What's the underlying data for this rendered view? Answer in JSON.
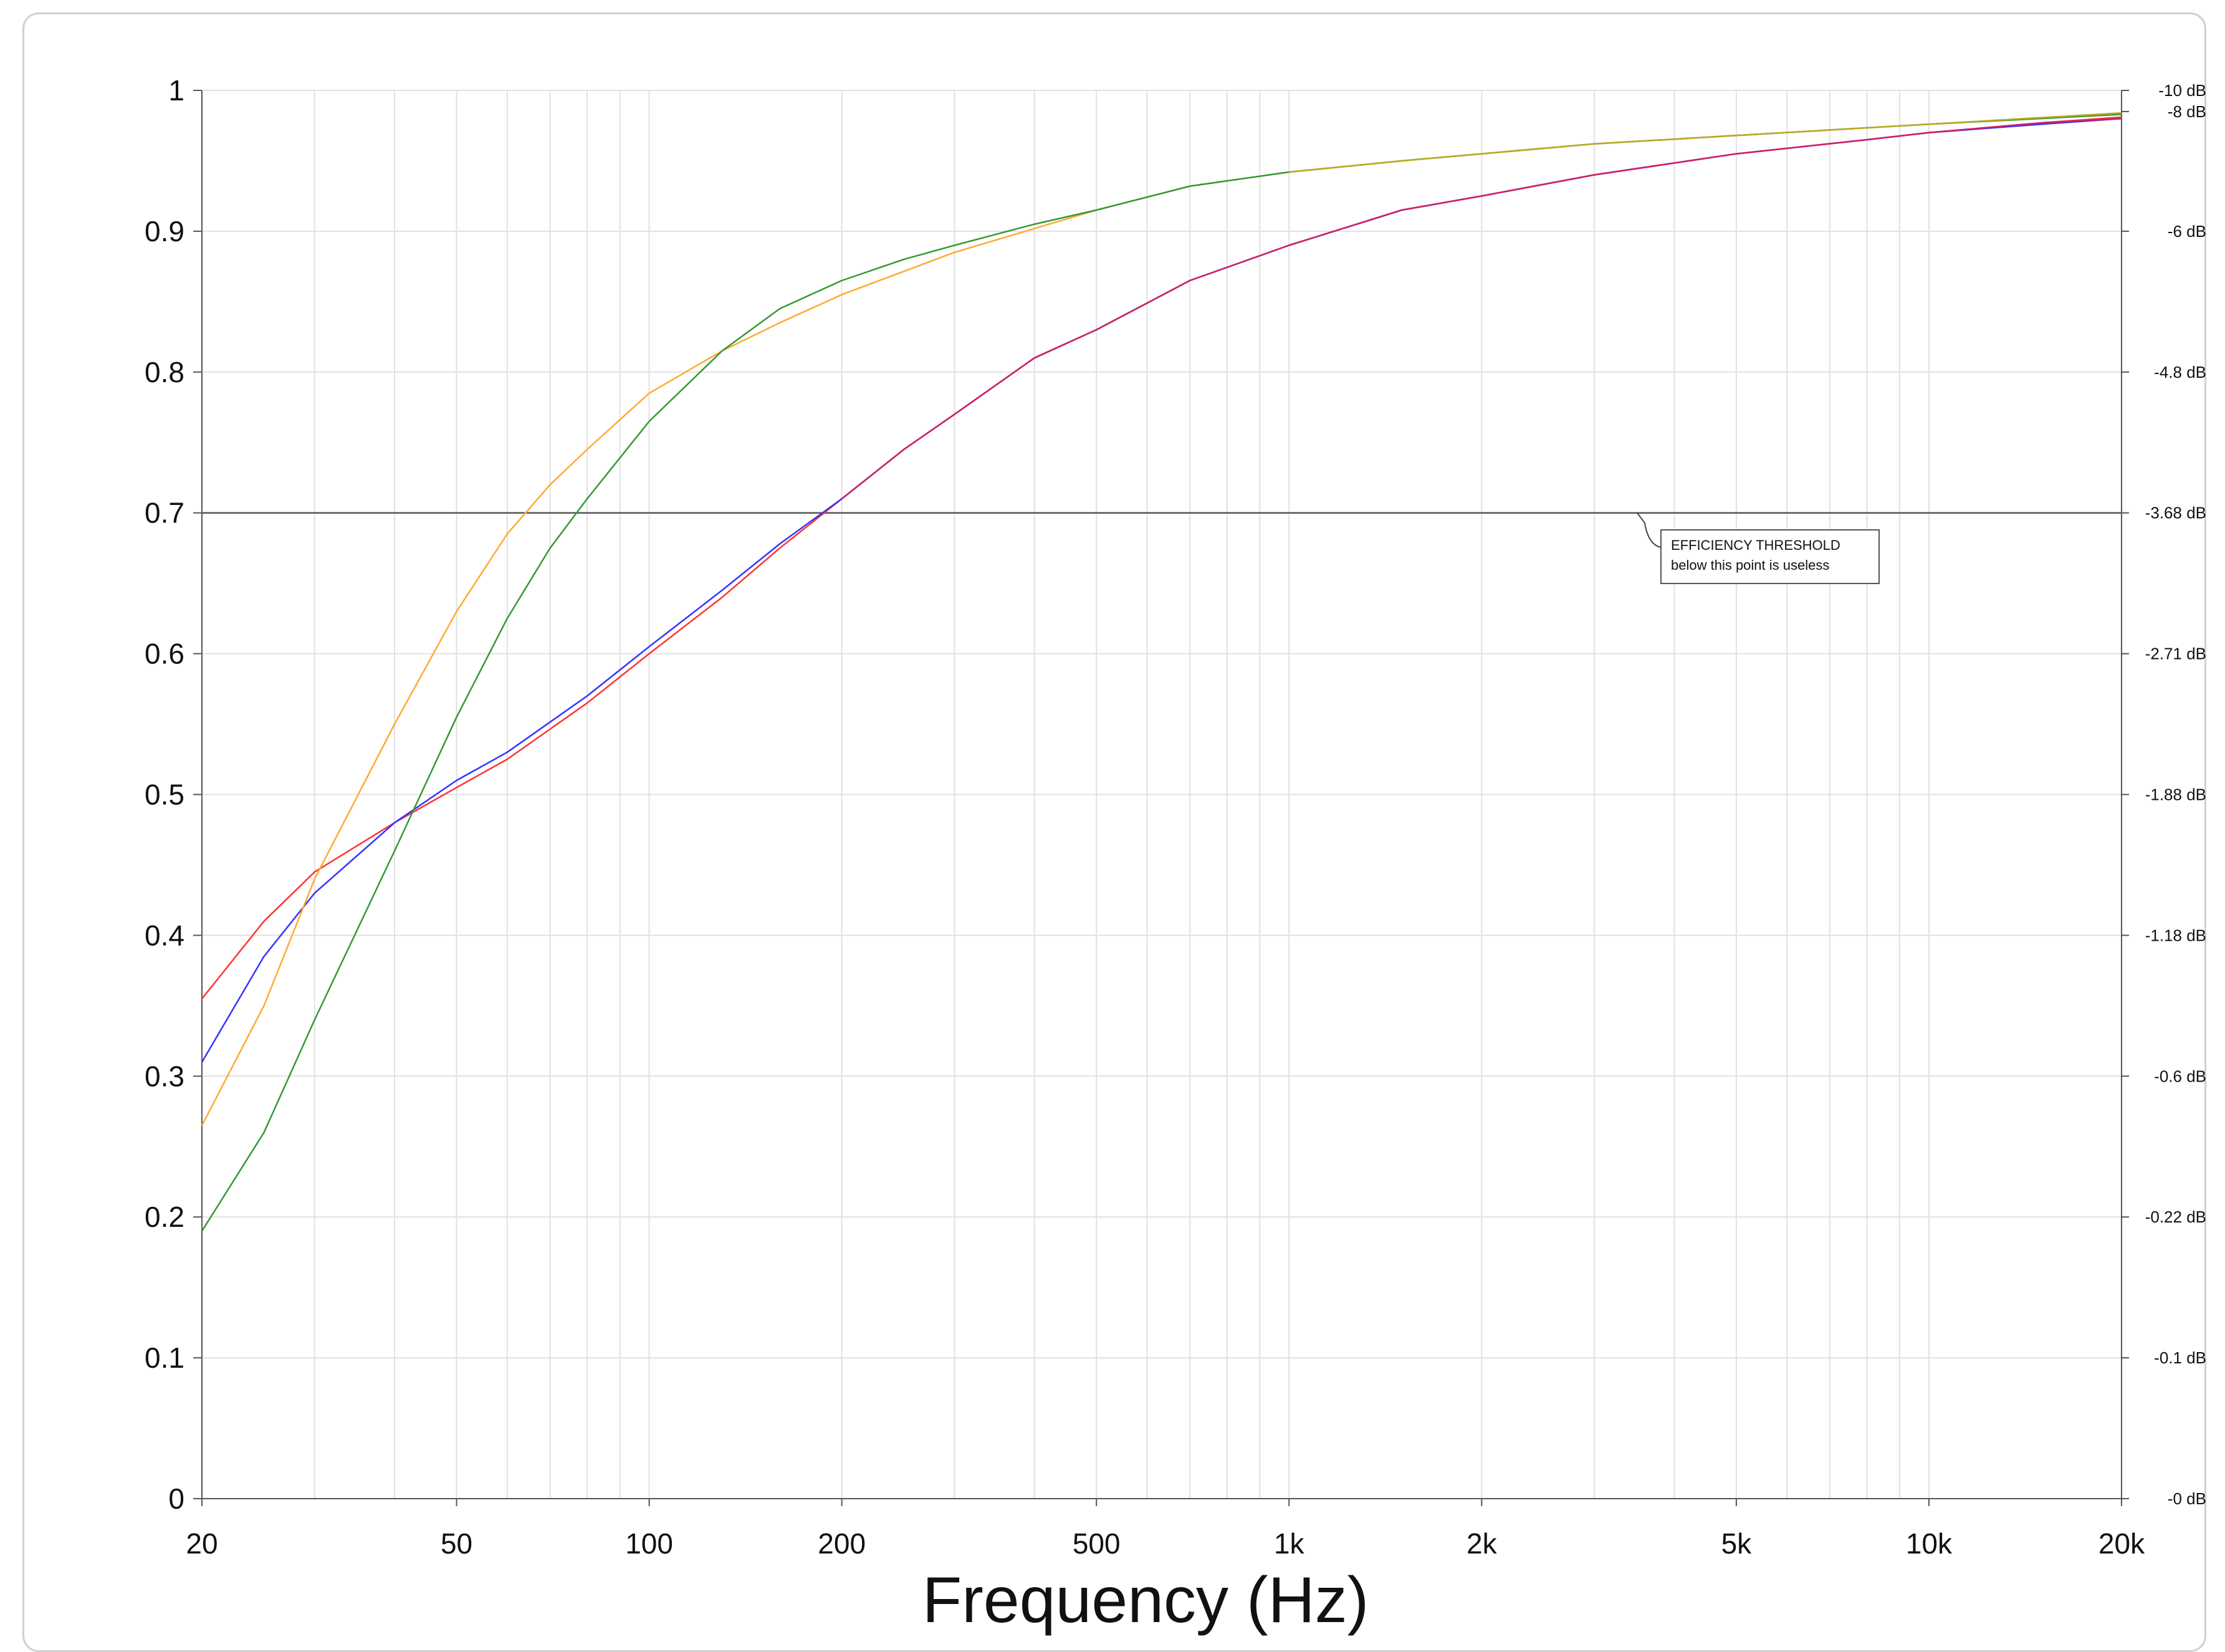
{
  "chart_data": {
    "type": "line",
    "title": "",
    "xlabel": "Frequency (Hz)",
    "ylabel": "",
    "x_scale": "log",
    "xlim": [
      20,
      20000
    ],
    "ylim": [
      0,
      1
    ],
    "grid": true,
    "x_ticks": [
      {
        "value": 20,
        "label": "20"
      },
      {
        "value": 50,
        "label": "50"
      },
      {
        "value": 100,
        "label": "100"
      },
      {
        "value": 200,
        "label": "200"
      },
      {
        "value": 500,
        "label": "500"
      },
      {
        "value": 1000,
        "label": "1k"
      },
      {
        "value": 2000,
        "label": "2k"
      },
      {
        "value": 5000,
        "label": "5k"
      },
      {
        "value": 10000,
        "label": "10k"
      },
      {
        "value": 20000,
        "label": "20k"
      }
    ],
    "y_ticks": [
      {
        "value": 0,
        "label": "0"
      },
      {
        "value": 0.1,
        "label": "0.1"
      },
      {
        "value": 0.2,
        "label": "0.2"
      },
      {
        "value": 0.3,
        "label": "0.3"
      },
      {
        "value": 0.4,
        "label": "0.4"
      },
      {
        "value": 0.5,
        "label": "0.5"
      },
      {
        "value": 0.6,
        "label": "0.6"
      },
      {
        "value": 0.7,
        "label": "0.7"
      },
      {
        "value": 0.8,
        "label": "0.8"
      },
      {
        "value": 0.9,
        "label": "0.9"
      },
      {
        "value": 1,
        "label": "1"
      }
    ],
    "y2_ticks": [
      {
        "value": 0,
        "label": "-0 dB"
      },
      {
        "value": 0.1,
        "label": "-0.1 dB"
      },
      {
        "value": 0.2,
        "label": "-0.22 dB"
      },
      {
        "value": 0.3,
        "label": "-0.6 dB"
      },
      {
        "value": 0.4,
        "label": "-1.18 dB"
      },
      {
        "value": 0.5,
        "label": "-1.88 dB"
      },
      {
        "value": 0.6,
        "label": "-2.71 dB"
      },
      {
        "value": 0.7,
        "label": "-3.68 dB"
      },
      {
        "value": 0.8,
        "label": "-4.8 dB"
      },
      {
        "value": 0.9,
        "label": "-6 dB"
      },
      {
        "value": 0.985,
        "label": "-8 dB"
      },
      {
        "value": 1,
        "label": "-10 dB"
      }
    ],
    "threshold": {
      "value": 0.7,
      "annotation_line1": "EFFICIENCY THRESHOLD",
      "annotation_line2": "below this point is useless",
      "annotation_anchor_x": 3500
    },
    "series": [
      {
        "color": "#ff3333",
        "x": [
          20,
          25,
          30,
          40,
          50,
          60,
          80,
          100,
          130,
          160,
          200,
          250,
          300,
          400,
          500,
          700,
          1000,
          1500,
          2000,
          3000,
          5000,
          8000,
          10000,
          15000,
          20000
        ],
        "y": [
          0.355,
          0.41,
          0.445,
          0.48,
          0.505,
          0.525,
          0.565,
          0.6,
          0.64,
          0.675,
          0.71,
          0.745,
          0.77,
          0.81,
          0.83,
          0.865,
          0.89,
          0.915,
          0.925,
          0.94,
          0.955,
          0.965,
          0.97,
          0.977,
          0.981
        ]
      },
      {
        "color": "#3333ff",
        "x": [
          20,
          25,
          30,
          40,
          50,
          60,
          80,
          100,
          130,
          160,
          200,
          250,
          300,
          400,
          500,
          700,
          1000,
          1500,
          2000,
          3000,
          5000,
          8000,
          10000,
          15000,
          20000
        ],
        "y": [
          0.31,
          0.385,
          0.43,
          0.48,
          0.51,
          0.53,
          0.57,
          0.605,
          0.645,
          0.678,
          0.71,
          0.745,
          0.77,
          0.81,
          0.83,
          0.865,
          0.89,
          0.915,
          0.925,
          0.94,
          0.955,
          0.965,
          0.97,
          0.976,
          0.98
        ]
      },
      {
        "color": "#ffaa33",
        "x": [
          20,
          25,
          30,
          40,
          50,
          60,
          70,
          80,
          100,
          130,
          160,
          200,
          300,
          500,
          700,
          1000,
          1500,
          2000,
          3000,
          5000,
          10000,
          20000
        ],
        "y": [
          0.265,
          0.35,
          0.44,
          0.55,
          0.63,
          0.685,
          0.72,
          0.745,
          0.785,
          0.815,
          0.835,
          0.855,
          0.885,
          0.915,
          0.932,
          0.942,
          0.95,
          0.955,
          0.962,
          0.968,
          0.976,
          0.983
        ]
      },
      {
        "color": "#339933",
        "x": [
          20,
          25,
          30,
          40,
          50,
          60,
          70,
          80,
          100,
          130,
          160,
          200,
          250,
          300,
          400,
          500,
          700,
          1000,
          1500,
          2000,
          3000,
          5000,
          10000,
          20000
        ],
        "y": [
          0.19,
          0.26,
          0.34,
          0.46,
          0.555,
          0.625,
          0.675,
          0.71,
          0.765,
          0.815,
          0.845,
          0.865,
          0.88,
          0.89,
          0.905,
          0.915,
          0.932,
          0.942,
          0.95,
          0.955,
          0.962,
          0.968,
          0.976,
          0.983
        ]
      },
      {
        "color": "#bbaa22",
        "x": [
          1000,
          1500,
          2000,
          3000,
          5000,
          10000,
          20000
        ],
        "y": [
          0.942,
          0.95,
          0.955,
          0.962,
          0.968,
          0.976,
          0.984
        ]
      },
      {
        "color": "#cc2266",
        "x": [
          200,
          250,
          300,
          400,
          500,
          700,
          1000,
          1500,
          2000,
          3000,
          5000,
          8000,
          10000,
          15000,
          20000
        ],
        "y": [
          0.71,
          0.745,
          0.77,
          0.81,
          0.83,
          0.865,
          0.89,
          0.915,
          0.925,
          0.94,
          0.955,
          0.965,
          0.97,
          0.977,
          0.98
        ]
      }
    ]
  }
}
